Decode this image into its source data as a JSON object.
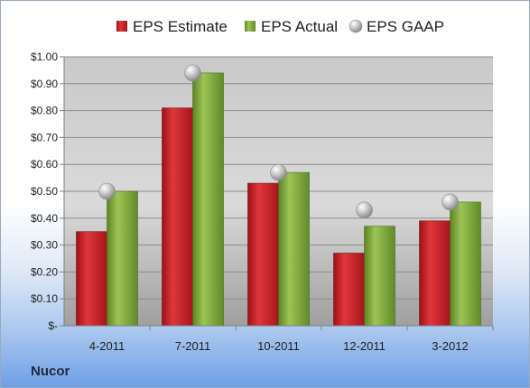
{
  "company": "Nucor",
  "chart_data": {
    "type": "bar",
    "categories": [
      "4-2011",
      "7-2011",
      "10-2011",
      "12-2011",
      "3-2012"
    ],
    "series": [
      {
        "name": "EPS Estimate",
        "kind": "bar",
        "color": "#c62027",
        "values": [
          0.35,
          0.81,
          0.53,
          0.27,
          0.39
        ]
      },
      {
        "name": "EPS Actual",
        "kind": "bar",
        "color": "#7ea83a",
        "values": [
          0.5,
          0.94,
          0.57,
          0.37,
          0.46
        ]
      },
      {
        "name": "EPS GAAP",
        "kind": "marker",
        "color": "#b8b8b8",
        "values": [
          0.5,
          0.94,
          0.57,
          0.43,
          0.46
        ]
      }
    ],
    "yticks": [
      "$-",
      "$0.10",
      "$0.20",
      "$0.30",
      "$0.40",
      "$0.50",
      "$0.60",
      "$0.70",
      "$0.80",
      "$0.90",
      "$1.00"
    ],
    "ylim": [
      0,
      1.0
    ],
    "grid": true,
    "legend_position": "top"
  }
}
